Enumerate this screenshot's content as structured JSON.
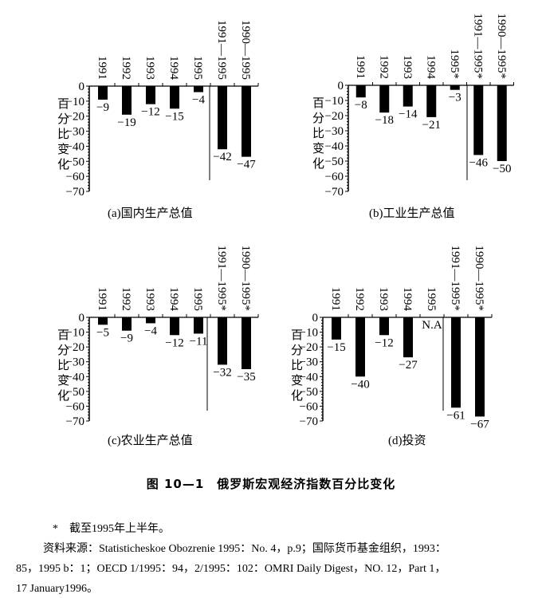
{
  "chart_data": [
    {
      "type": "bar",
      "panel": "a",
      "title": "(a)国内生产总值",
      "ylabel": "百分比变化",
      "categories": [
        "1991",
        "1992",
        "1993",
        "1994",
        "1995",
        "1991—1995",
        "1990—1995"
      ],
      "values": [
        -9,
        -19,
        -12,
        -15,
        -4,
        -42,
        -47
      ],
      "data_labels": [
        "-9",
        "-19",
        "-12",
        "-15",
        "-4",
        "-42",
        "-47"
      ],
      "ylim": [
        -70,
        0
      ],
      "yticks": [
        "0",
        "-10",
        "-20",
        "-30",
        "-40",
        "-50",
        "-60",
        "-70"
      ],
      "grid": false
    },
    {
      "type": "bar",
      "panel": "b",
      "title": "(b)工业生产总值",
      "ylabel": "百分比变化",
      "categories": [
        "1991",
        "1992",
        "1993",
        "1994",
        "1995*",
        "1991—1995*",
        "1990—1995*"
      ],
      "values": [
        -8,
        -18,
        -14,
        -21,
        -3,
        -46,
        -50
      ],
      "data_labels": [
        "-8",
        "-18",
        "-14",
        "-21",
        "-3",
        "-46",
        "-50"
      ],
      "ylim": [
        -70,
        0
      ],
      "yticks": [
        "0",
        "-10",
        "-20",
        "-30",
        "-40",
        "-50",
        "-60",
        "-70"
      ],
      "grid": false
    },
    {
      "type": "bar",
      "panel": "c",
      "title": "(c)农业生产总值",
      "ylabel": "百分比变化",
      "categories": [
        "1991",
        "1992",
        "1993",
        "1994",
        "1995",
        "1991—1995*",
        "1990—1995*"
      ],
      "values": [
        -5,
        -9,
        -4,
        -12,
        -11,
        -32,
        -35
      ],
      "data_labels": [
        "-5",
        "-9",
        "-4",
        "-12",
        "-11",
        "-32",
        "-35"
      ],
      "ylim": [
        -70,
        0
      ],
      "yticks": [
        "0",
        "-10",
        "-20",
        "-30",
        "-40",
        "-50",
        "-60",
        "-70"
      ],
      "grid": false
    },
    {
      "type": "bar",
      "panel": "d",
      "title": "(d)投资",
      "ylabel": "百分比变化",
      "categories": [
        "1991",
        "1992",
        "1993",
        "1994",
        "1995",
        "1991—1995*",
        "1990—1995*"
      ],
      "values": [
        -15,
        -40,
        -12,
        -27,
        null,
        -61,
        -67
      ],
      "data_labels": [
        "-15",
        "-40",
        "-12",
        "-27",
        "N.A",
        "-61",
        "-67"
      ],
      "ylim": [
        -70,
        0
      ],
      "yticks": [
        "0",
        "-10",
        "-20",
        "-30",
        "-40",
        "-50",
        "-60",
        "-70"
      ],
      "grid": false
    }
  ],
  "figure_title": "图 10—1　俄罗斯宏观经济指数百分比变化",
  "notes": {
    "footnote": "*　截至1995年上半年。",
    "source_line1": "资料来源：Statisticheskoe Obozrenie 1995：No. 4，p.9；国际货币基金组织，1993：",
    "source_line2": "85，1995 b：1；OECD 1/1995：94，2/1995：102：OMRI Daily Digest，NO. 12，Part 1，",
    "source_line3": "17 January1996。"
  }
}
